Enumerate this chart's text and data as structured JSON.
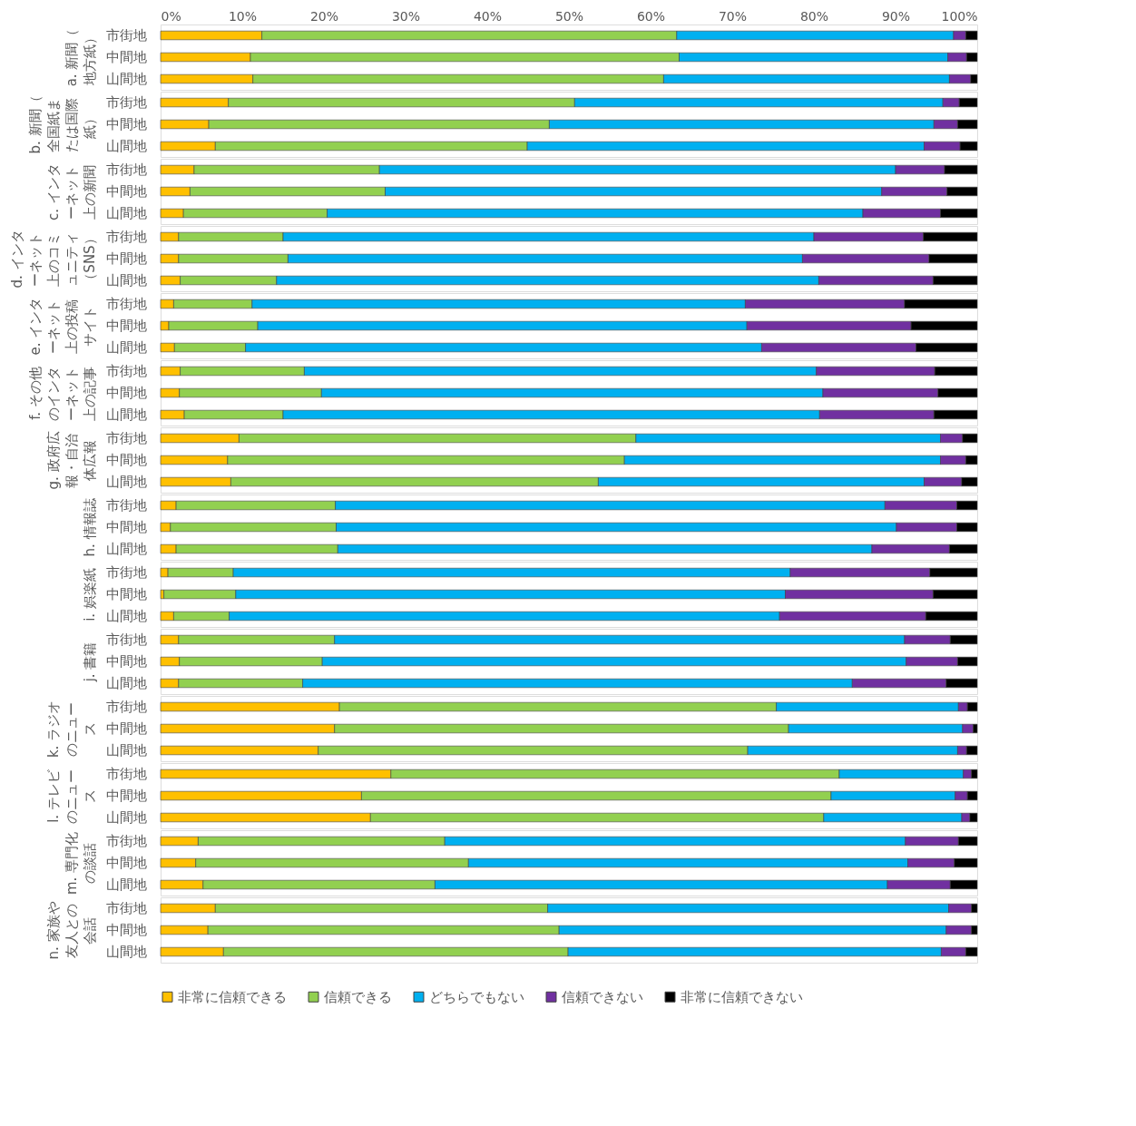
{
  "chart_data": [
    {
      "type": "bar",
      "orientation": "horizontal",
      "stacked": true,
      "ylabel": "a. 新聞（地方紙）",
      "categories": [
        "市街地",
        "中間地",
        "山間地"
      ],
      "xlim": [
        0,
        100
      ],
      "xticks": [
        {
          "value": 0,
          "label": "0%"
        },
        {
          "value": 10,
          "label": "10%"
        },
        {
          "value": 20,
          "label": "20%"
        },
        {
          "value": 30,
          "label": "30%"
        },
        {
          "value": 40,
          "label": "40%"
        },
        {
          "value": 50,
          "label": "50%"
        },
        {
          "value": 60,
          "label": "60%"
        },
        {
          "value": 70,
          "label": "70%"
        },
        {
          "value": 80,
          "label": "80%"
        },
        {
          "value": 90,
          "label": "90%"
        },
        {
          "value": 100,
          "label": "100%"
        }
      ],
      "series": [
        {
          "color": "#ffc000",
          "values": [
            12.4,
            11.0,
            11.3
          ]
        },
        {
          "color": "#92d050",
          "values": [
            50.8,
            52.5,
            50.3
          ]
        },
        {
          "color": "#00b0f0",
          "values": [
            33.9,
            32.9,
            35.0
          ]
        },
        {
          "color": "#7030a0",
          "values": [
            1.5,
            2.3,
            2.6
          ]
        },
        {
          "color": "#000000",
          "values": [
            1.4,
            1.3,
            0.8
          ]
        }
      ]
    },
    {
      "type": "bar",
      "orientation": "horizontal",
      "stacked": true,
      "tick_labels": "y",
      "ylabel": "b. 新聞（全国紙または国際紙）",
      "categories": [
        "市街地",
        "中間地",
        "山間地"
      ],
      "xlim": [
        0,
        100
      ],
      "series": [
        {
          "color": "#ffc000",
          "values": [
            8.3,
            5.9,
            6.7
          ]
        },
        {
          "color": "#92d050",
          "values": [
            42.4,
            41.7,
            38.2
          ]
        },
        {
          "color": "#00b0f0",
          "values": [
            45.1,
            47.1,
            48.6
          ]
        },
        {
          "color": "#7030a0",
          "values": [
            2.0,
            2.9,
            4.4
          ]
        },
        {
          "color": "#000000",
          "values": [
            2.2,
            2.4,
            2.1
          ]
        }
      ]
    },
    {
      "type": "bar",
      "orientation": "horizontal",
      "stacked": true,
      "tick_labels": "y",
      "ylabel": "c. インターネット上の新聞",
      "categories": [
        "市街地",
        "中間地",
        "山間地"
      ],
      "xlim": [
        0,
        100
      ],
      "series": [
        {
          "color": "#ffc000",
          "values": [
            4.1,
            3.6,
            2.8
          ]
        },
        {
          "color": "#92d050",
          "values": [
            22.7,
            23.9,
            17.6
          ]
        },
        {
          "color": "#00b0f0",
          "values": [
            63.2,
            60.8,
            65.6
          ]
        },
        {
          "color": "#7030a0",
          "values": [
            6.0,
            8.0,
            9.5
          ]
        },
        {
          "color": "#000000",
          "values": [
            4.0,
            3.7,
            4.5
          ]
        }
      ]
    },
    {
      "type": "bar",
      "orientation": "horizontal",
      "stacked": true,
      "tick_labels": "y",
      "ylabel": "d. インターネット上のコミュニティ（SNS）",
      "categories": [
        "市街地",
        "中間地",
        "山間地"
      ],
      "xlim": [
        0,
        100
      ],
      "series": [
        {
          "color": "#ffc000",
          "values": [
            2.2,
            2.2,
            2.4
          ]
        },
        {
          "color": "#92d050",
          "values": [
            12.8,
            13.4,
            11.8
          ]
        },
        {
          "color": "#00b0f0",
          "values": [
            65.0,
            63.0,
            66.4
          ]
        },
        {
          "color": "#7030a0",
          "values": [
            13.4,
            15.5,
            14.0
          ]
        },
        {
          "color": "#000000",
          "values": [
            6.6,
            5.9,
            5.4
          ]
        }
      ]
    },
    {
      "type": "bar",
      "orientation": "horizontal",
      "stacked": true,
      "tick_labels": "y",
      "ylabel": "e. インターネット上の投稿サイト",
      "categories": [
        "市街地",
        "中間地",
        "山間地"
      ],
      "xlim": [
        0,
        100
      ],
      "series": [
        {
          "color": "#ffc000",
          "values": [
            1.6,
            1.0,
            1.7
          ]
        },
        {
          "color": "#92d050",
          "values": [
            9.6,
            10.9,
            8.7
          ]
        },
        {
          "color": "#00b0f0",
          "values": [
            60.4,
            59.9,
            63.2
          ]
        },
        {
          "color": "#7030a0",
          "values": [
            19.5,
            20.1,
            18.9
          ]
        },
        {
          "color": "#000000",
          "values": [
            8.9,
            8.1,
            7.5
          ]
        }
      ]
    },
    {
      "type": "bar",
      "orientation": "horizontal",
      "stacked": true,
      "tick_labels": "y",
      "ylabel": "f. その他のインターネット上の記事",
      "categories": [
        "市街地",
        "中間地",
        "山間地"
      ],
      "xlim": [
        0,
        100
      ],
      "series": [
        {
          "color": "#ffc000",
          "values": [
            2.4,
            2.3,
            2.9
          ]
        },
        {
          "color": "#92d050",
          "values": [
            15.2,
            17.4,
            12.1
          ]
        },
        {
          "color": "#00b0f0",
          "values": [
            62.7,
            61.4,
            65.7
          ]
        },
        {
          "color": "#7030a0",
          "values": [
            14.5,
            14.1,
            14.0
          ]
        },
        {
          "color": "#000000",
          "values": [
            5.2,
            4.8,
            5.3
          ]
        }
      ]
    },
    {
      "type": "bar",
      "orientation": "horizontal",
      "stacked": true,
      "tick_labels": "y",
      "ylabel": "g. 政府広報・自治体広報",
      "categories": [
        "市街地",
        "中間地",
        "山間地"
      ],
      "xlim": [
        0,
        100
      ],
      "series": [
        {
          "color": "#ffc000",
          "values": [
            9.6,
            8.2,
            8.6
          ]
        },
        {
          "color": "#92d050",
          "values": [
            48.6,
            48.6,
            45.0
          ]
        },
        {
          "color": "#00b0f0",
          "values": [
            37.3,
            38.7,
            39.9
          ]
        },
        {
          "color": "#7030a0",
          "values": [
            2.7,
            3.1,
            4.6
          ]
        },
        {
          "color": "#000000",
          "values": [
            1.8,
            1.4,
            1.9
          ]
        }
      ]
    },
    {
      "type": "bar",
      "orientation": "horizontal",
      "stacked": true,
      "tick_labels": "y",
      "ylabel": "h. 情報誌",
      "categories": [
        "市街地",
        "中間地",
        "山間地"
      ],
      "xlim": [
        0,
        100
      ],
      "series": [
        {
          "color": "#ffc000",
          "values": [
            1.9,
            1.2,
            1.9
          ]
        },
        {
          "color": "#92d050",
          "values": [
            19.5,
            20.3,
            19.8
          ]
        },
        {
          "color": "#00b0f0",
          "values": [
            67.3,
            68.6,
            65.4
          ]
        },
        {
          "color": "#7030a0",
          "values": [
            8.8,
            7.4,
            9.5
          ]
        },
        {
          "color": "#000000",
          "values": [
            2.5,
            2.5,
            3.4
          ]
        }
      ]
    },
    {
      "type": "bar",
      "orientation": "horizontal",
      "stacked": true,
      "tick_labels": "y",
      "ylabel": "i. 娯楽紙",
      "categories": [
        "市街地",
        "中間地",
        "山間地"
      ],
      "xlim": [
        0,
        100
      ],
      "series": [
        {
          "color": "#ffc000",
          "values": [
            0.9,
            0.4,
            1.6
          ]
        },
        {
          "color": "#92d050",
          "values": [
            8.0,
            8.8,
            6.8
          ]
        },
        {
          "color": "#00b0f0",
          "values": [
            68.2,
            67.3,
            67.4
          ]
        },
        {
          "color": "#7030a0",
          "values": [
            17.1,
            18.1,
            17.9
          ]
        },
        {
          "color": "#000000",
          "values": [
            5.8,
            5.4,
            6.3
          ]
        }
      ]
    },
    {
      "type": "bar",
      "orientation": "horizontal",
      "stacked": true,
      "tick_labels": "y",
      "ylabel": "j. 書籍",
      "categories": [
        "市街地",
        "中間地",
        "山間地"
      ],
      "xlim": [
        0,
        100
      ],
      "series": [
        {
          "color": "#ffc000",
          "values": [
            2.2,
            2.3,
            2.2
          ]
        },
        {
          "color": "#92d050",
          "values": [
            19.1,
            17.5,
            15.2
          ]
        },
        {
          "color": "#00b0f0",
          "values": [
            69.8,
            71.5,
            67.3
          ]
        },
        {
          "color": "#7030a0",
          "values": [
            5.6,
            6.3,
            11.5
          ]
        },
        {
          "color": "#000000",
          "values": [
            3.3,
            2.4,
            3.8
          ]
        }
      ]
    },
    {
      "type": "bar",
      "orientation": "horizontal",
      "stacked": true,
      "tick_labels": "y",
      "ylabel": "k. ラジオのニュース",
      "categories": [
        "市街地",
        "中間地",
        "山間地"
      ],
      "xlim": [
        0,
        100
      ],
      "series": [
        {
          "color": "#ffc000",
          "values": [
            21.9,
            21.3,
            19.3
          ]
        },
        {
          "color": "#92d050",
          "values": [
            53.5,
            55.6,
            52.6
          ]
        },
        {
          "color": "#00b0f0",
          "values": [
            22.3,
            21.3,
            25.7
          ]
        },
        {
          "color": "#7030a0",
          "values": [
            1.1,
            1.3,
            1.1
          ]
        },
        {
          "color": "#000000",
          "values": [
            1.2,
            0.5,
            1.3
          ]
        }
      ]
    },
    {
      "type": "bar",
      "orientation": "horizontal",
      "stacked": true,
      "tick_labels": "y",
      "ylabel": "l. テレビのニュース",
      "categories": [
        "市街地",
        "中間地",
        "山間地"
      ],
      "xlim": [
        0,
        100
      ],
      "series": [
        {
          "color": "#ffc000",
          "values": [
            28.2,
            24.6,
            25.7
          ]
        },
        {
          "color": "#92d050",
          "values": [
            54.9,
            57.5,
            55.5
          ]
        },
        {
          "color": "#00b0f0",
          "values": [
            15.2,
            15.2,
            16.9
          ]
        },
        {
          "color": "#7030a0",
          "values": [
            1.0,
            1.5,
            1.0
          ]
        },
        {
          "color": "#000000",
          "values": [
            0.7,
            1.2,
            0.9
          ]
        }
      ]
    },
    {
      "type": "bar",
      "orientation": "horizontal",
      "stacked": true,
      "tick_labels": "y",
      "ylabel": "m. 専門化の談話",
      "categories": [
        "市街地",
        "中間地",
        "山間地"
      ],
      "xlim": [
        0,
        100
      ],
      "series": [
        {
          "color": "#ffc000",
          "values": [
            4.6,
            4.3,
            5.2
          ]
        },
        {
          "color": "#92d050",
          "values": [
            30.2,
            33.4,
            28.4
          ]
        },
        {
          "color": "#00b0f0",
          "values": [
            56.4,
            53.8,
            55.4
          ]
        },
        {
          "color": "#7030a0",
          "values": [
            6.5,
            5.7,
            7.7
          ]
        },
        {
          "color": "#000000",
          "values": [
            2.3,
            2.8,
            3.3
          ]
        }
      ]
    },
    {
      "type": "bar",
      "orientation": "horizontal",
      "stacked": true,
      "tick_labels": "y",
      "legend": "bottom",
      "ylabel": "n. 家族や友人との会話",
      "categories": [
        "市街地",
        "中間地",
        "山間地"
      ],
      "xlim": [
        0,
        100
      ],
      "series": [
        {
          "name": "非常に信頼できる",
          "color": "#ffc000",
          "values": [
            6.7,
            5.8,
            7.7
          ]
        },
        {
          "name": "信頼できる",
          "color": "#92d050",
          "values": [
            40.7,
            43.0,
            42.2
          ]
        },
        {
          "name": "どちらでもない",
          "color": "#00b0f0",
          "values": [
            49.1,
            47.4,
            45.7
          ]
        },
        {
          "name": "信頼できない",
          "color": "#7030a0",
          "values": [
            2.8,
            3.1,
            3.0
          ]
        },
        {
          "name": "非常に信頼できない",
          "color": "#000000",
          "values": [
            0.7,
            0.7,
            1.4
          ]
        }
      ]
    }
  ]
}
